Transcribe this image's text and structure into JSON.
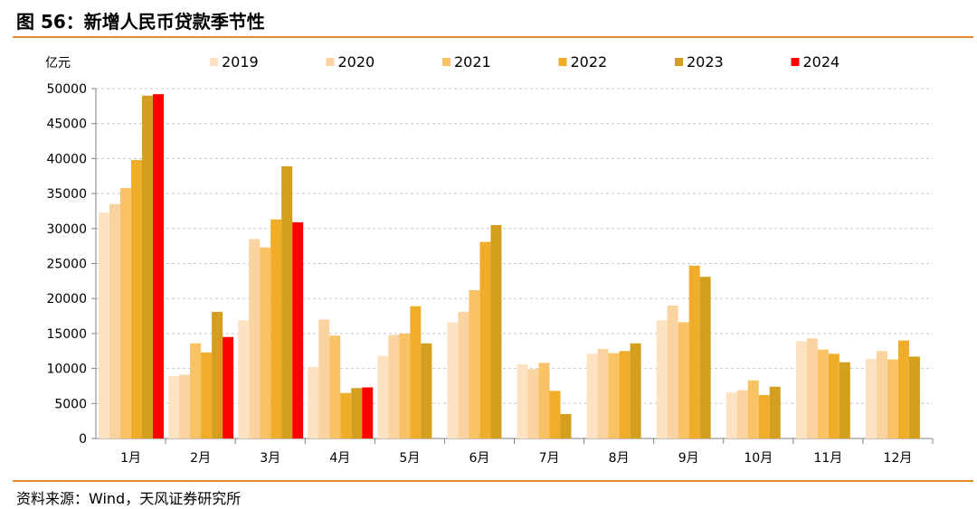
{
  "header": {
    "title": "图 56：新增人民币贷款季节性"
  },
  "footer": {
    "source": "资料来源：Wind，天风证券研究所"
  },
  "chart_data": {
    "type": "bar",
    "y_unit": "亿元",
    "ylim": [
      0,
      50000
    ],
    "yticks": [
      "0",
      "5000",
      "10000",
      "15000",
      "20000",
      "25000",
      "30000",
      "35000",
      "40000",
      "45000",
      "50000"
    ],
    "grid": true,
    "legend_position": "top",
    "categories": [
      "1月",
      "2月",
      "3月",
      "4月",
      "5月",
      "6月",
      "7月",
      "8月",
      "9月",
      "10月",
      "11月",
      "12月"
    ],
    "series": [
      {
        "name": "2019",
        "color": "#fde3c2",
        "values": [
          32300,
          8900,
          16900,
          10200,
          11800,
          16600,
          10600,
          12100,
          16900,
          6600,
          13900,
          11400
        ]
      },
      {
        "name": "2020",
        "color": "#fbd3a0",
        "values": [
          33500,
          9100,
          28500,
          17000,
          14800,
          18100,
          9900,
          12800,
          19000,
          6900,
          14300,
          12500
        ]
      },
      {
        "name": "2021",
        "color": "#f8c265",
        "values": [
          35800,
          13600,
          27300,
          14700,
          15000,
          21200,
          10800,
          12200,
          16600,
          8300,
          12700,
          11300
        ]
      },
      {
        "name": "2022",
        "color": "#efad2a",
        "values": [
          39800,
          12300,
          31300,
          6500,
          18900,
          28100,
          6800,
          12500,
          24700,
          6200,
          12100,
          14000
        ]
      },
      {
        "name": "2023",
        "color": "#d49e1e",
        "values": [
          49000,
          18100,
          38900,
          7200,
          13600,
          30500,
          3500,
          13600,
          23100,
          7400,
          10900,
          11700
        ]
      },
      {
        "name": "2024",
        "color": "#ff0000",
        "values": [
          49200,
          14500,
          30900,
          7300,
          null,
          null,
          null,
          null,
          null,
          null,
          null,
          null
        ]
      }
    ]
  }
}
